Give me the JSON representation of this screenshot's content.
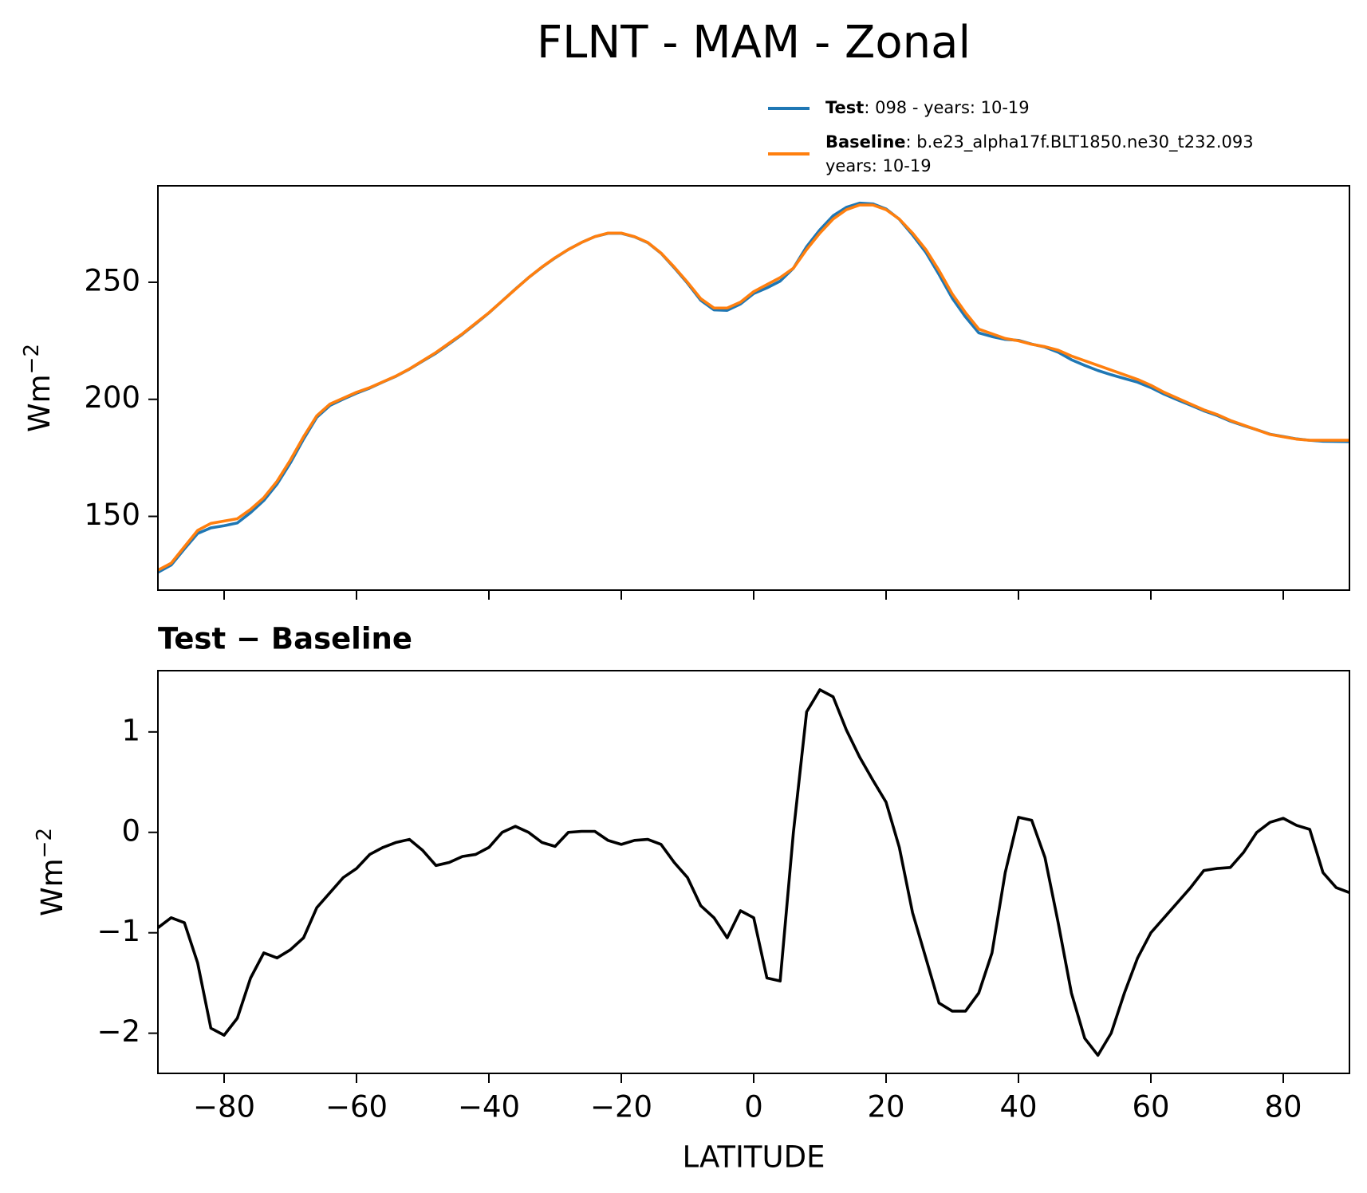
{
  "title": "FLNT - MAM - Zonal",
  "chart_data": [
    {
      "type": "line",
      "ylabel": {
        "base": "Wm",
        "sup": "−2"
      },
      "x": [
        -90,
        -88,
        -86,
        -84,
        -82,
        -80,
        -78,
        -76,
        -74,
        -72,
        -70,
        -68,
        -66,
        -64,
        -62,
        -60,
        -58,
        -56,
        -54,
        -52,
        -50,
        -48,
        -46,
        -44,
        -42,
        -40,
        -38,
        -36,
        -34,
        -32,
        -30,
        -28,
        -26,
        -24,
        -22,
        -20,
        -18,
        -16,
        -14,
        -12,
        -10,
        -8,
        -6,
        -4,
        -2,
        0,
        2,
        4,
        6,
        8,
        10,
        12,
        14,
        16,
        18,
        20,
        22,
        24,
        26,
        28,
        30,
        32,
        34,
        36,
        38,
        40,
        42,
        44,
        46,
        48,
        50,
        52,
        54,
        56,
        58,
        60,
        62,
        64,
        66,
        68,
        70,
        72,
        74,
        76,
        78,
        80,
        82,
        84,
        86,
        88,
        90
      ],
      "series": [
        {
          "name": "Test",
          "details": [
            ": 098 - years: 10-19"
          ],
          "color": "#1f77b4",
          "values": [
            126.1,
            129.2,
            136.1,
            142.7,
            145.1,
            146.0,
            147.2,
            151.6,
            156.8,
            163.8,
            172.8,
            183.0,
            192.3,
            197.4,
            200.1,
            202.6,
            204.8,
            207.4,
            209.9,
            212.9,
            216.3,
            219.7,
            223.7,
            227.8,
            232.3,
            236.9,
            242.0,
            247.1,
            252.0,
            256.4,
            260.4,
            264.0,
            267.0,
            269.5,
            270.9,
            270.9,
            269.4,
            266.9,
            262.4,
            256.2,
            249.6,
            242.3,
            238.2,
            238.0,
            240.7,
            245.2,
            247.6,
            250.5,
            256.0,
            265.2,
            272.4,
            278.4,
            282.0,
            283.8,
            283.5,
            281.3,
            276.9,
            270.2,
            262.8,
            253.3,
            243.2,
            235.2,
            228.4,
            226.8,
            225.6,
            225.2,
            223.6,
            222.3,
            220.1,
            216.9,
            214.5,
            212.3,
            210.5,
            208.9,
            207.3,
            205.0,
            202.2,
            199.8,
            197.5,
            195.1,
            193.1,
            190.7,
            188.8,
            187.0,
            185.1,
            184.1,
            183.1,
            182.5,
            182.1,
            182.0,
            181.9
          ]
        },
        {
          "name": "Baseline",
          "details": [
            ": b.e23_alpha17f.BLT1850.ne30_t232.093",
            "years: 10-19"
          ],
          "color": "#ff7f0e",
          "values": [
            127,
            130,
            137,
            144,
            147,
            148,
            149,
            153,
            158,
            165,
            174,
            184,
            193,
            198,
            200.5,
            203,
            205,
            207.5,
            210,
            213,
            216.5,
            220,
            224,
            228,
            232.5,
            237,
            242,
            247,
            252,
            256.5,
            260.5,
            264,
            267,
            269.5,
            271,
            271,
            269.5,
            267,
            262.5,
            256.5,
            250,
            243,
            239,
            239,
            241.5,
            246,
            249,
            252,
            256,
            264,
            271,
            277,
            281,
            283,
            283,
            281,
            277,
            271,
            264,
            255,
            245,
            237,
            230,
            228,
            226,
            225,
            223.5,
            222.5,
            221,
            218.5,
            216.5,
            214.5,
            212.5,
            210.5,
            208.5,
            206,
            203,
            200.5,
            198,
            195.5,
            193.5,
            191,
            189,
            187,
            185,
            184,
            183,
            182.5,
            182.5,
            182.5,
            182.5
          ]
        }
      ],
      "xlim": [
        -90,
        90
      ],
      "xticks": [
        -80,
        -60,
        -40,
        -20,
        0,
        20,
        40,
        60,
        80
      ],
      "ylim": [
        118.5,
        291.2
      ],
      "yticks": [
        150,
        200,
        250
      ]
    },
    {
      "type": "line",
      "title": "Test − Baseline",
      "xlabel": "LATITUDE",
      "ylabel": {
        "base": "Wm",
        "sup": "−2"
      },
      "x": [
        -90,
        -88,
        -86,
        -84,
        -82,
        -80,
        -78,
        -76,
        -74,
        -72,
        -70,
        -68,
        -66,
        -64,
        -62,
        -60,
        -58,
        -56,
        -54,
        -52,
        -50,
        -48,
        -46,
        -44,
        -42,
        -40,
        -38,
        -36,
        -34,
        -32,
        -30,
        -28,
        -26,
        -24,
        -22,
        -20,
        -18,
        -16,
        -14,
        -12,
        -10,
        -8,
        -6,
        -4,
        -2,
        0,
        2,
        4,
        6,
        8,
        10,
        12,
        14,
        16,
        18,
        20,
        22,
        24,
        26,
        28,
        30,
        32,
        34,
        36,
        38,
        40,
        42,
        44,
        46,
        48,
        50,
        52,
        54,
        56,
        58,
        60,
        62,
        64,
        66,
        68,
        70,
        72,
        74,
        76,
        78,
        80,
        82,
        84,
        86,
        88,
        90
      ],
      "series": [
        {
          "color": "#000000",
          "values": [
            -0.95,
            -0.85,
            -0.9,
            -1.3,
            -1.95,
            -2.02,
            -1.85,
            -1.45,
            -1.2,
            -1.25,
            -1.17,
            -1.05,
            -0.75,
            -0.6,
            -0.45,
            -0.36,
            -0.22,
            -0.15,
            -0.1,
            -0.07,
            -0.18,
            -0.33,
            -0.3,
            -0.24,
            -0.22,
            -0.15,
            0.0,
            0.06,
            0.0,
            -0.1,
            -0.14,
            0.0,
            0.01,
            0.01,
            -0.08,
            -0.12,
            -0.08,
            -0.07,
            -0.12,
            -0.3,
            -0.45,
            -0.73,
            -0.85,
            -1.05,
            -0.78,
            -0.85,
            -1.45,
            -1.48,
            0.0,
            1.2,
            1.42,
            1.35,
            1.02,
            0.75,
            0.52,
            0.3,
            -0.15,
            -0.8,
            -1.25,
            -1.7,
            -1.78,
            -1.78,
            -1.6,
            -1.2,
            -0.4,
            0.15,
            0.12,
            -0.25,
            -0.9,
            -1.6,
            -2.05,
            -2.22,
            -2.0,
            -1.6,
            -1.25,
            -1.0,
            -0.85,
            -0.7,
            -0.55,
            -0.38,
            -0.36,
            -0.35,
            -0.2,
            0.0,
            0.1,
            0.14,
            0.07,
            0.03,
            -0.4,
            -0.55,
            -0.6
          ]
        }
      ],
      "xlim": [
        -90,
        90
      ],
      "xticks": [
        {
          "value": -80,
          "label": "−80"
        },
        {
          "value": -60,
          "label": "−60"
        },
        {
          "value": -40,
          "label": "−40"
        },
        {
          "value": -20,
          "label": "−20"
        },
        0,
        20,
        40,
        60,
        80
      ],
      "ylim": [
        -2.4,
        1.61
      ],
      "yticks": [
        {
          "value": -2,
          "label": "−2"
        },
        {
          "value": -1,
          "label": "−1"
        },
        0,
        1
      ]
    }
  ]
}
